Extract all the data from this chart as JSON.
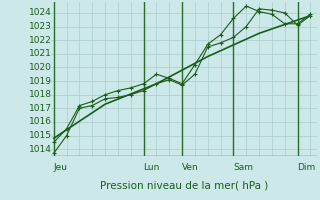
{
  "xlabel": "Pression niveau de la mer( hPa )",
  "bg_color": "#cce8e8",
  "grid_color": "#a8cccc",
  "line_color": "#1a5c1a",
  "vline_color": "#2d6b2d",
  "ylim": [
    1013.5,
    1024.8
  ],
  "yticks": [
    1014,
    1015,
    1016,
    1017,
    1018,
    1019,
    1020,
    1021,
    1022,
    1023,
    1024
  ],
  "x_day_labels": [
    "Jeu",
    "Lun",
    "Ven",
    "Sam",
    "Dim"
  ],
  "x_day_positions": [
    0,
    7,
    10,
    14,
    19
  ],
  "xlim": [
    -0.2,
    20.5
  ],
  "series1_x": [
    0,
    1,
    2,
    3,
    4,
    5,
    6,
    7,
    8,
    9,
    10,
    11,
    12,
    13,
    14,
    15,
    16,
    17,
    18,
    19,
    20
  ],
  "series1_y": [
    1013.7,
    1015.0,
    1017.0,
    1017.2,
    1017.7,
    1017.8,
    1018.0,
    1018.3,
    1018.8,
    1019.1,
    1018.7,
    1019.5,
    1021.5,
    1021.8,
    1022.2,
    1023.0,
    1024.3,
    1024.2,
    1024.0,
    1023.1,
    1023.8
  ],
  "series2_x": [
    0,
    1,
    2,
    3,
    4,
    5,
    6,
    7,
    8,
    9,
    10,
    11,
    12,
    13,
    14,
    15,
    16,
    17,
    18,
    19,
    20
  ],
  "series2_y": [
    1014.5,
    1015.5,
    1017.2,
    1017.5,
    1018.0,
    1018.3,
    1018.5,
    1018.8,
    1019.5,
    1019.2,
    1018.8,
    1020.2,
    1021.7,
    1022.4,
    1023.6,
    1024.5,
    1024.1,
    1023.9,
    1023.2,
    1023.2,
    1023.9
  ],
  "series3_x": [
    0,
    4,
    8,
    12,
    16,
    20
  ],
  "series3_y": [
    1014.8,
    1017.3,
    1018.8,
    1020.8,
    1022.5,
    1023.8
  ],
  "tick_fontsize": 6.5,
  "xlabel_fontsize": 7.5
}
